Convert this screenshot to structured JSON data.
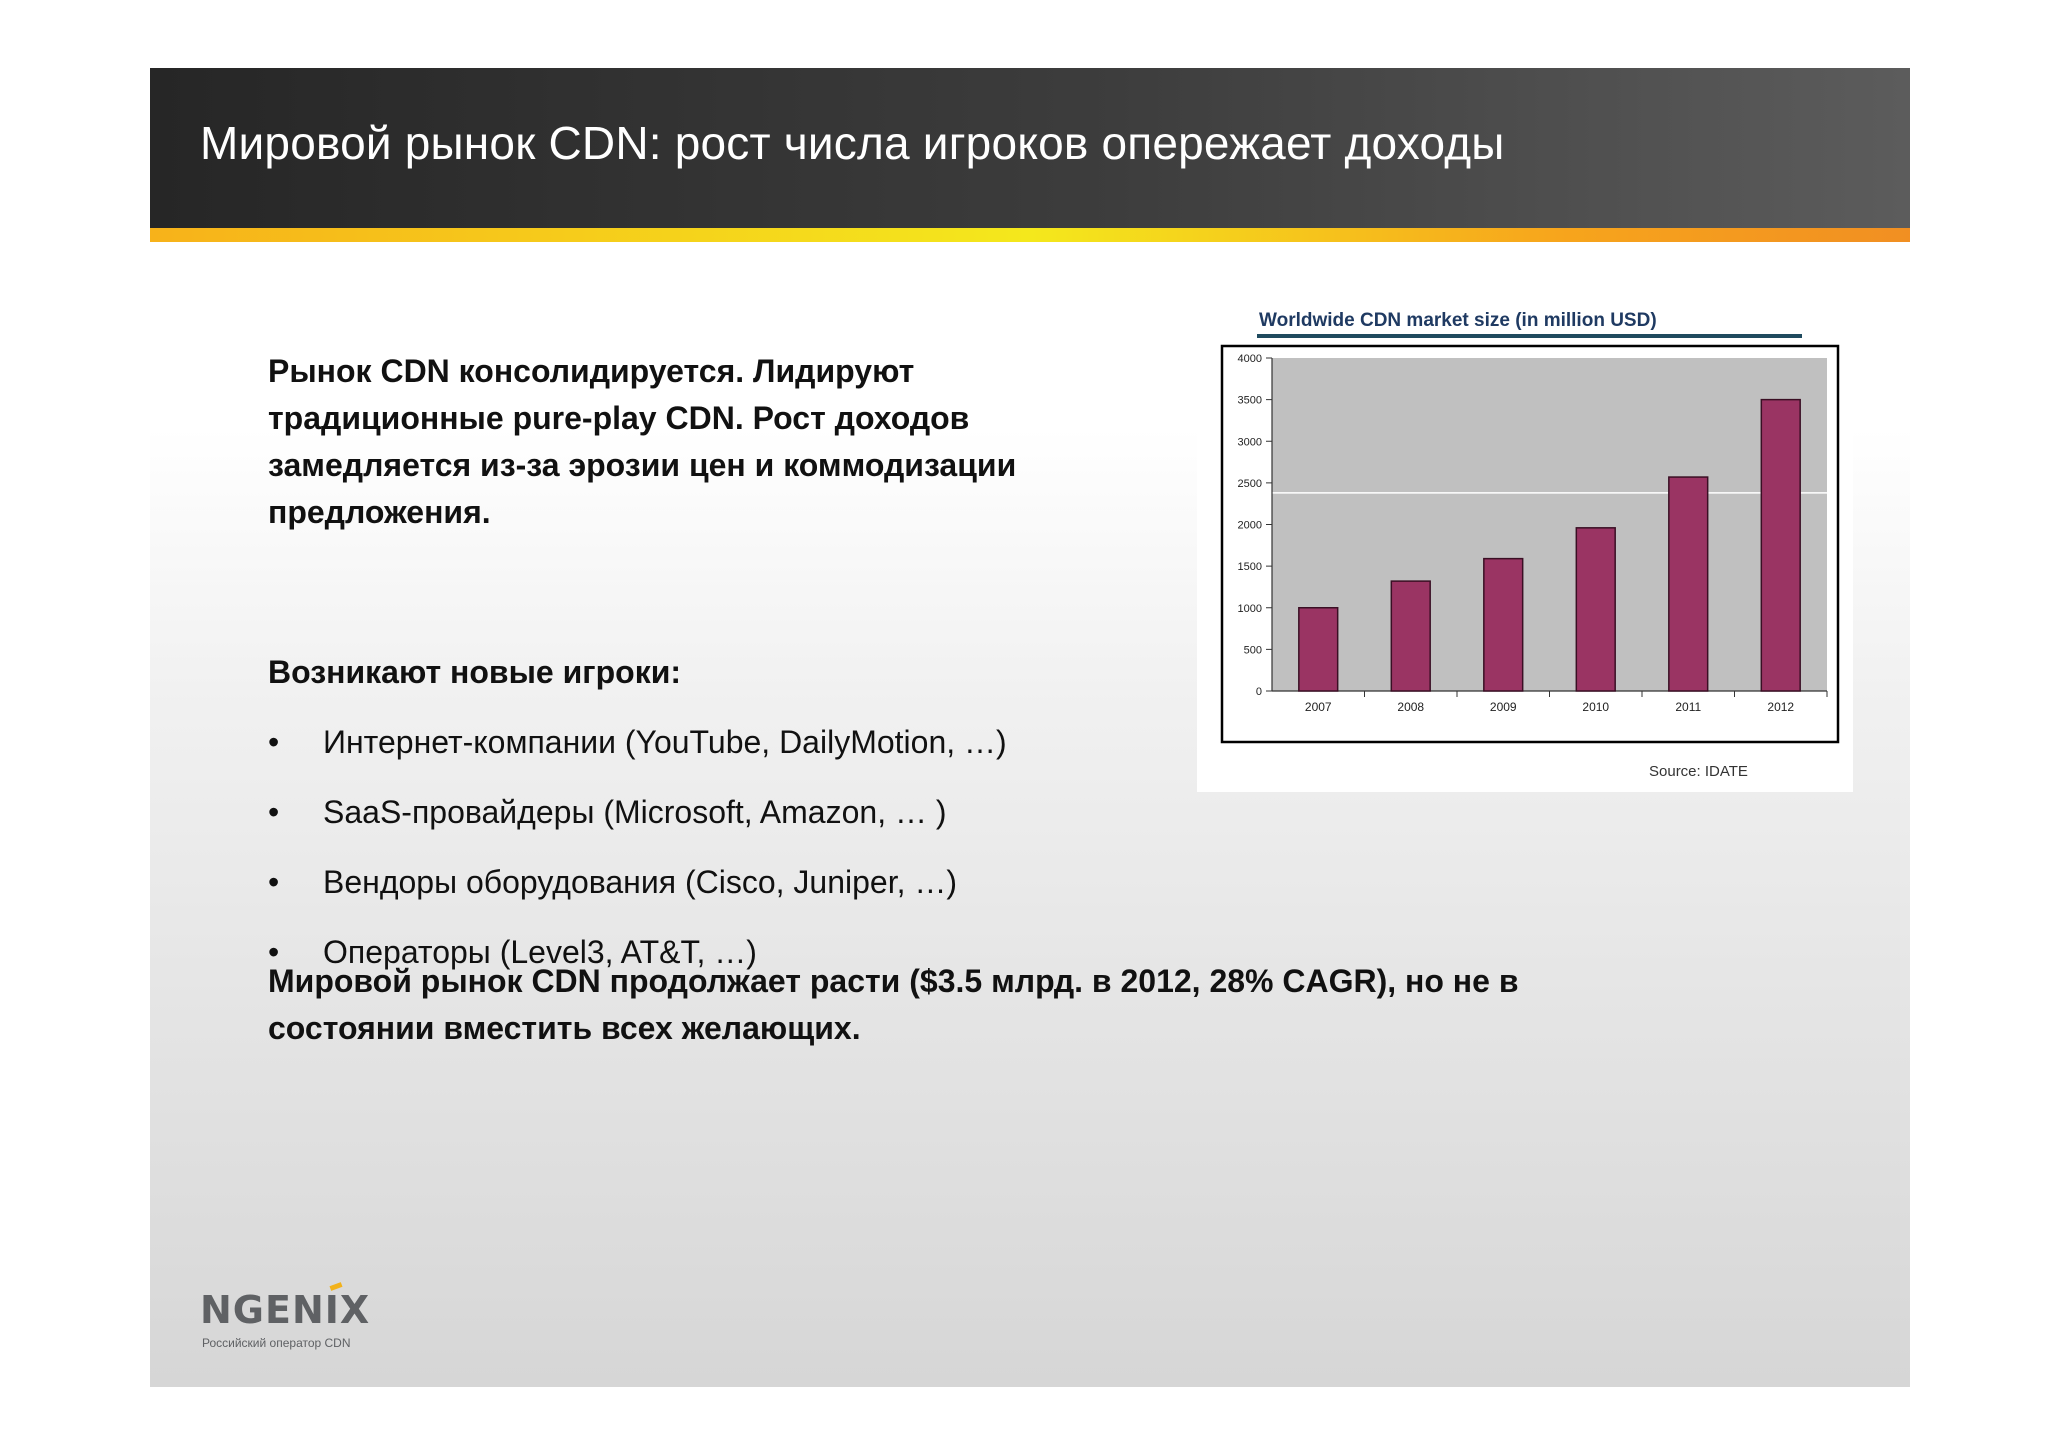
{
  "header": {
    "title": "Мировой рынок CDN: рост числа игроков опережает доходы"
  },
  "content": {
    "lead_lines": [
      "Рынок CDN консолидируется. Лидируют",
      "традиционные pure-play CDN.  Рост доходов",
      "замедляется из-за эрозии цен и коммодизации",
      "предложения."
    ],
    "subhead": "Возникают новые игроки:",
    "bullet_glyph": "•",
    "bullets": [
      "Интернет-компании (YouTube, DailyMotion, …)",
      "SaaS-провайдеры  (Microsoft, Amazon, … )",
      "Вендоры оборудования (Cisco, Juniper, …)",
      "Операторы (Level3, AT&T, …)"
    ],
    "conclusion_lines": [
      "Мировой рынок CDN продолжает расти ($3.5 млрд. в 2012,  28% CAGR), но не в",
      "состоянии вместить всех желающих."
    ]
  },
  "chart_data": {
    "type": "bar",
    "title": "Worldwide CDN market size (in million USD)",
    "categories": [
      "2007",
      "2008",
      "2009",
      "2010",
      "2011",
      "2012"
    ],
    "values": [
      1000,
      1320,
      1590,
      1960,
      2570,
      3500
    ],
    "ylim": [
      0,
      4000
    ],
    "yticks": [
      "0",
      "500",
      "1000",
      "1500",
      "2000",
      "2500",
      "3000",
      "3500",
      "4000"
    ],
    "reference_line": 2380,
    "xlabel": "",
    "ylabel": "",
    "source": "Source: IDATE",
    "colors": {
      "bar": "#9a3463",
      "bar_border": "#3a0f24",
      "plot_bg": "#c0c0c0",
      "title": "#1f3a62",
      "title_rule": "#1f4a5e"
    }
  },
  "logo": {
    "wordmark": "NGENIX",
    "tagline": "Российский оператор CDN",
    "accent_color": "#f2b21b"
  }
}
